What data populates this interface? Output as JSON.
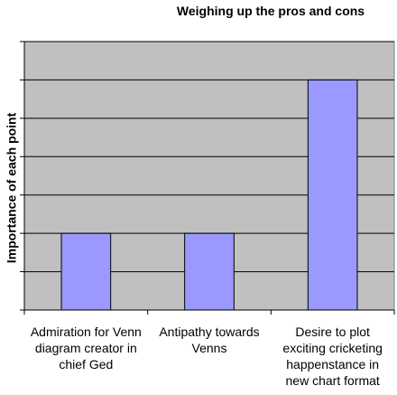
{
  "chart_data": {
    "type": "bar",
    "title": "Weighing up the pros and cons",
    "y_label": "Importance of each point",
    "categories": [
      "Admiration for Venn diagram creator in chief Ged",
      "Antipathy towards Venns",
      "Desire to plot exciting cricketing happenstance in new chart format"
    ],
    "values": [
      2,
      2,
      6
    ],
    "color": "#9999ff",
    "ylim": [
      0,
      7
    ],
    "yticks": [
      0,
      1,
      2,
      3,
      4,
      5,
      6,
      7
    ],
    "grid": true
  }
}
